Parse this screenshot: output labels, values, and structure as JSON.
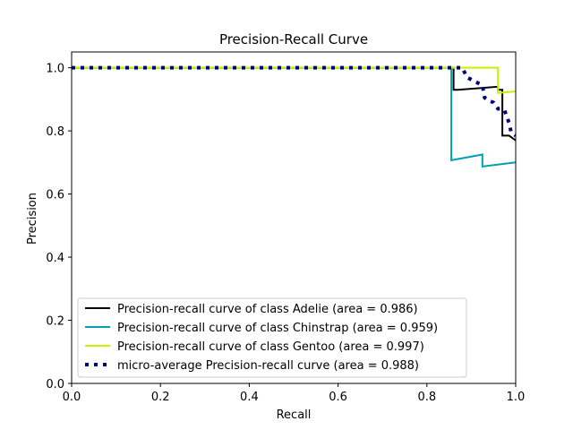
{
  "chart_data": {
    "type": "line",
    "title": "Precision-Recall Curve",
    "xlabel": "Recall",
    "ylabel": "Precision",
    "xlim": [
      0.0,
      1.0
    ],
    "ylim": [
      0.0,
      1.05
    ],
    "xticks": [
      "0.0",
      "0.2",
      "0.4",
      "0.6",
      "0.8",
      "1.0"
    ],
    "yticks": [
      "0.0",
      "0.2",
      "0.4",
      "0.6",
      "0.8",
      "1.0"
    ],
    "grid": false,
    "legend_position": "lower-left",
    "series": [
      {
        "name": "Precision-recall curve of class Adelie (area = 0.986)",
        "color": "#000000",
        "style": "solid",
        "x": [
          0.0,
          0.86,
          0.86,
          0.87,
          0.96,
          0.96,
          0.97,
          0.97,
          0.985,
          1.0
        ],
        "y": [
          1.0,
          1.0,
          0.93,
          0.93,
          0.94,
          0.93,
          0.93,
          0.785,
          0.785,
          0.77
        ]
      },
      {
        "name": "Precision-recall curve of class Chinstrap (area = 0.959)",
        "color": "#00a0b0",
        "style": "solid",
        "x": [
          0.0,
          0.855,
          0.855,
          0.925,
          0.925,
          1.0
        ],
        "y": [
          1.0,
          1.0,
          0.707,
          0.725,
          0.687,
          0.7
        ]
      },
      {
        "name": "Precision-recall curve of class Gentoo (area = 0.997)",
        "color": "#ccee00",
        "style": "solid",
        "x": [
          0.0,
          0.96,
          0.96,
          1.0
        ],
        "y": [
          1.0,
          1.0,
          0.92,
          0.925
        ]
      },
      {
        "name": "micro-average Precision-recall curve (area = 0.988)",
        "color": "#000080",
        "style": "dotted",
        "x": [
          0.0,
          0.88,
          0.89,
          0.91,
          0.925,
          0.93,
          0.94,
          0.95,
          0.96,
          0.965,
          0.975,
          0.985,
          0.99,
          1.0
        ],
        "y": [
          1.0,
          1.0,
          0.97,
          0.955,
          0.945,
          0.905,
          0.895,
          0.89,
          0.87,
          0.87,
          0.865,
          0.825,
          0.795,
          0.785
        ]
      }
    ]
  }
}
